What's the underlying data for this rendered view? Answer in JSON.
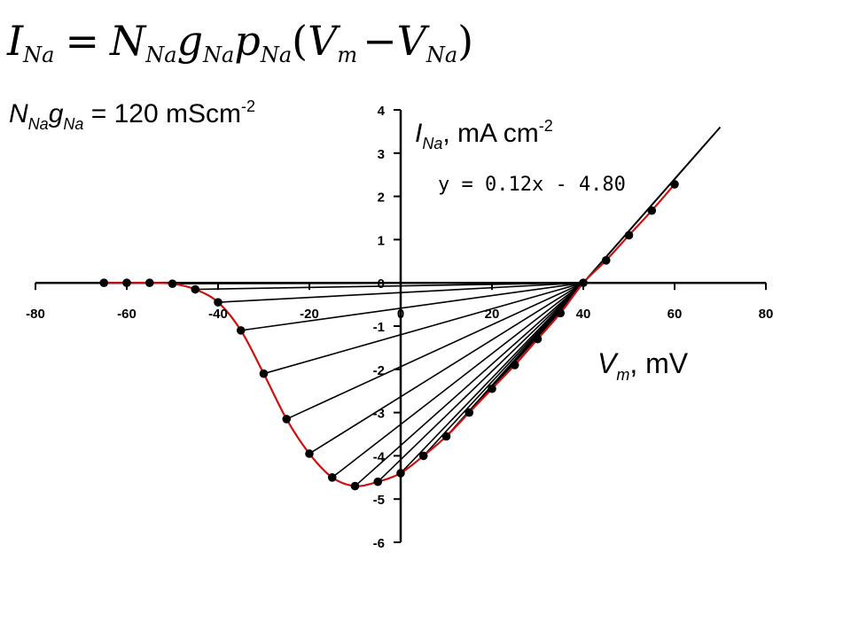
{
  "equation": {
    "lhs_main": "I",
    "lhs_sub": "Na",
    "equals": "=",
    "n_main": "N",
    "n_sub": "Na",
    "g_main": "g",
    "g_sub": "Na",
    "p_main": "p",
    "p_sub": "Na",
    "open_paren": "(",
    "vm_main": "V",
    "vm_sub": "m",
    "minus": "−",
    "vna_main": "V",
    "vna_sub": "Na",
    "close_paren": ")"
  },
  "conductance": {
    "n_main": "N",
    "n_sub": "Na",
    "g_main": "g",
    "g_sub": "Na",
    "value_text": " = 120 mScm",
    "exponent": "-2"
  },
  "colors": {
    "axis": "#000000",
    "curve": "#cc1111",
    "markers": "#000000",
    "chords": "#000000"
  },
  "chart_data": {
    "type": "line",
    "title": "",
    "xlabel": {
      "main": "V",
      "sub": "m",
      "rest": ", mV"
    },
    "ylabel": {
      "main": "I",
      "sub": "Na",
      "rest": ", mA cm",
      "sup": "-2"
    },
    "xlim": [
      -80,
      80
    ],
    "ylim": [
      -6,
      4
    ],
    "x_ticks": [
      -80,
      -60,
      -40,
      -20,
      0,
      20,
      40,
      60,
      80
    ],
    "y_ticks": [
      4,
      3,
      2,
      1,
      0,
      -1,
      -2,
      -3,
      -4,
      -5,
      -6
    ],
    "grid": false,
    "reversal_potential": 40,
    "fit_equation": "y = 0.12x - 4.80",
    "fit_line": {
      "slope": 0.12,
      "intercept": -4.8,
      "x_range": [
        40,
        70
      ]
    },
    "series": [
      {
        "kind": "peak_current",
        "x": [
          -65,
          -60,
          -55,
          -50,
          -45,
          -40,
          -35,
          -30,
          -25,
          -20,
          -15,
          -10,
          -5,
          0,
          5,
          10,
          15,
          20,
          25,
          30,
          35
        ],
        "y": [
          0.0,
          0.0,
          0.0,
          -0.02,
          -0.15,
          -0.45,
          -1.1,
          -2.1,
          -3.15,
          -3.95,
          -4.5,
          -4.7,
          -4.6,
          -4.4,
          -4.0,
          -3.55,
          -3.0,
          -2.45,
          -1.9,
          -1.3,
          -0.7
        ]
      },
      {
        "kind": "instantaneous_current",
        "x": [
          40,
          45,
          50,
          55,
          60
        ],
        "y": [
          0.0,
          0.52,
          1.1,
          1.67,
          2.28
        ]
      }
    ],
    "chord_origins_x": [
      -65,
      -60,
      -55,
      -50,
      -45,
      -40,
      -35,
      -30,
      -25,
      -20,
      -15,
      -10,
      -5,
      0,
      5,
      10,
      15,
      20,
      25,
      30,
      35
    ]
  }
}
